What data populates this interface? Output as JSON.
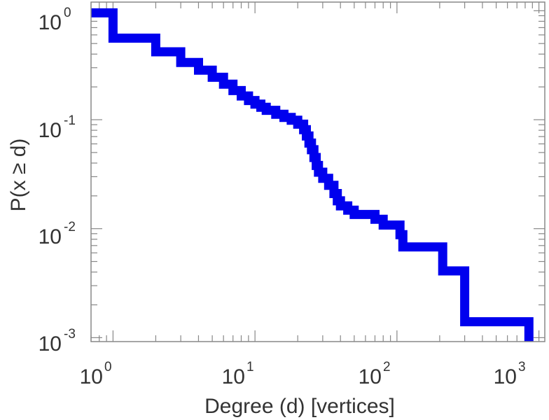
{
  "chart_data": {
    "type": "line",
    "title": "",
    "xlabel": "Degree (d) [vertices]",
    "ylabel": "P(x ≥ d)",
    "x_scale": "log",
    "y_scale": "log",
    "xlim": [
      0.7,
      1100
    ],
    "ylim": [
      0.00092,
      1.2
    ],
    "grid": false,
    "legend": "none",
    "x_ticks": [
      {
        "value": 1,
        "base": "10",
        "exp": "0"
      },
      {
        "value": 10,
        "base": "10",
        "exp": "1"
      },
      {
        "value": 100,
        "base": "10",
        "exp": "2"
      },
      {
        "value": 1000,
        "base": "10",
        "exp": "3"
      }
    ],
    "y_ticks": [
      {
        "value": 1,
        "base": "10",
        "exp": "0"
      },
      {
        "value": 0.1,
        "base": "10",
        "exp": "-1"
      },
      {
        "value": 0.01,
        "base": "10",
        "exp": "-2"
      },
      {
        "value": 0.001,
        "base": "10",
        "exp": "-3"
      }
    ],
    "series": [
      {
        "color": "#0000ee",
        "step": "post",
        "points": [
          [
            0.7,
            0.955
          ],
          [
            1.0,
            0.955
          ],
          [
            1.0,
            0.56
          ],
          [
            2.0,
            0.56
          ],
          [
            2.0,
            0.42
          ],
          [
            3.0,
            0.42
          ],
          [
            3.0,
            0.335
          ],
          [
            4.0,
            0.335
          ],
          [
            4.0,
            0.285
          ],
          [
            5.0,
            0.285
          ],
          [
            5.0,
            0.245
          ],
          [
            6.0,
            0.245
          ],
          [
            6.0,
            0.212
          ],
          [
            7.0,
            0.212
          ],
          [
            7.0,
            0.185
          ],
          [
            8.0,
            0.185
          ],
          [
            8.0,
            0.165
          ],
          [
            9.0,
            0.165
          ],
          [
            9.0,
            0.15
          ],
          [
            10.0,
            0.15
          ],
          [
            10.0,
            0.139
          ],
          [
            11.0,
            0.139
          ],
          [
            11.0,
            0.13
          ],
          [
            12.0,
            0.13
          ],
          [
            12.0,
            0.122
          ],
          [
            14.0,
            0.122
          ],
          [
            14.0,
            0.112
          ],
          [
            16.0,
            0.112
          ],
          [
            16.0,
            0.105
          ],
          [
            18.0,
            0.105
          ],
          [
            18.0,
            0.099
          ],
          [
            20.0,
            0.099
          ],
          [
            20.0,
            0.091
          ],
          [
            22.0,
            0.091
          ],
          [
            22.0,
            0.081
          ],
          [
            23.0,
            0.081
          ],
          [
            23.0,
            0.071
          ],
          [
            24.0,
            0.071
          ],
          [
            24.0,
            0.061
          ],
          [
            25.0,
            0.061
          ],
          [
            25.0,
            0.053
          ],
          [
            26.0,
            0.053
          ],
          [
            26.0,
            0.045
          ],
          [
            27.0,
            0.045
          ],
          [
            27.0,
            0.038
          ],
          [
            28.0,
            0.038
          ],
          [
            28.0,
            0.033
          ],
          [
            30.0,
            0.033
          ],
          [
            30.0,
            0.029
          ],
          [
            33.0,
            0.029
          ],
          [
            33.0,
            0.025
          ],
          [
            36.0,
            0.025
          ],
          [
            36.0,
            0.021
          ],
          [
            38.0,
            0.021
          ],
          [
            38.0,
            0.018
          ],
          [
            40.0,
            0.018
          ],
          [
            40.0,
            0.0162
          ],
          [
            45.0,
            0.0162
          ],
          [
            45.0,
            0.0148
          ],
          [
            50.0,
            0.0148
          ],
          [
            50.0,
            0.0135
          ],
          [
            70.0,
            0.0135
          ],
          [
            70.0,
            0.0122
          ],
          [
            80.0,
            0.0122
          ],
          [
            80.0,
            0.0108
          ],
          [
            105.0,
            0.0108
          ],
          [
            105.0,
            0.0088
          ],
          [
            110.0,
            0.0088
          ],
          [
            110.0,
            0.0068
          ],
          [
            210.0,
            0.0068
          ],
          [
            210.0,
            0.0041
          ],
          [
            300.0,
            0.0041
          ],
          [
            300.0,
            0.0014
          ],
          [
            850.0,
            0.0014
          ],
          [
            850.0,
            0.00092
          ]
        ]
      }
    ]
  }
}
